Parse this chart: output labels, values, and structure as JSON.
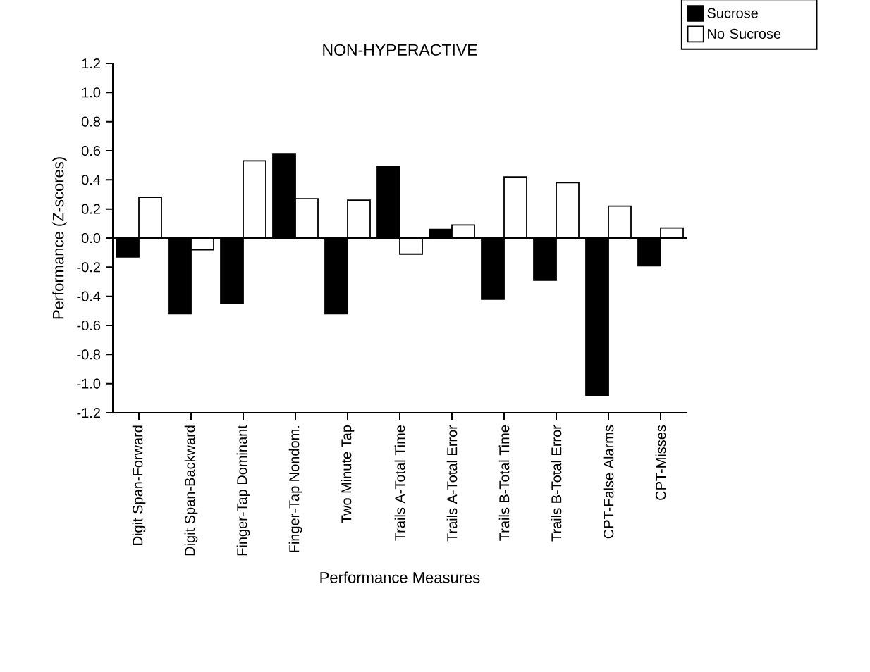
{
  "chart_data": {
    "type": "bar",
    "title": "NON-HYPERACTIVE",
    "xlabel": "Performance Measures",
    "ylabel": "Performance  (Z-scores)",
    "categories": [
      "Digit Span-Forward",
      "Digit Span-Backward",
      "Finger-Tap Dominant",
      "Finger-Tap Nondom.",
      "Two Minute Tap",
      "Trails A-Total Time",
      "Trails A-Total Error",
      "Trails B-Total Time",
      "Trails B-Total Error",
      "CPT-False Alarms",
      "CPT-Misses"
    ],
    "series": [
      {
        "name": "Sucrose",
        "color": "#000000",
        "values": [
          -0.13,
          -0.52,
          -0.45,
          0.58,
          -0.52,
          0.49,
          0.06,
          -0.42,
          -0.29,
          -1.08,
          -0.19
        ]
      },
      {
        "name": "No Sucrose",
        "color": "#ffffff",
        "values": [
          0.28,
          -0.08,
          0.53,
          0.27,
          0.26,
          -0.11,
          0.09,
          0.42,
          0.38,
          0.22,
          0.07
        ]
      }
    ],
    "ylim": [
      -1.2,
      1.2
    ],
    "yticks": [
      -1.2,
      {
        "value": -1,
        "label": "-1.0"
      },
      -0.8,
      -0.6,
      -0.4,
      -0.2,
      {
        "value": 0,
        "label": "0.0"
      },
      0.2,
      0.4,
      0.6,
      0.8,
      {
        "value": 1,
        "label": "1.0"
      },
      1.2
    ],
    "ref_lines": [
      {
        "axis": "y",
        "value": 0
      }
    ],
    "legend": "top right"
  }
}
